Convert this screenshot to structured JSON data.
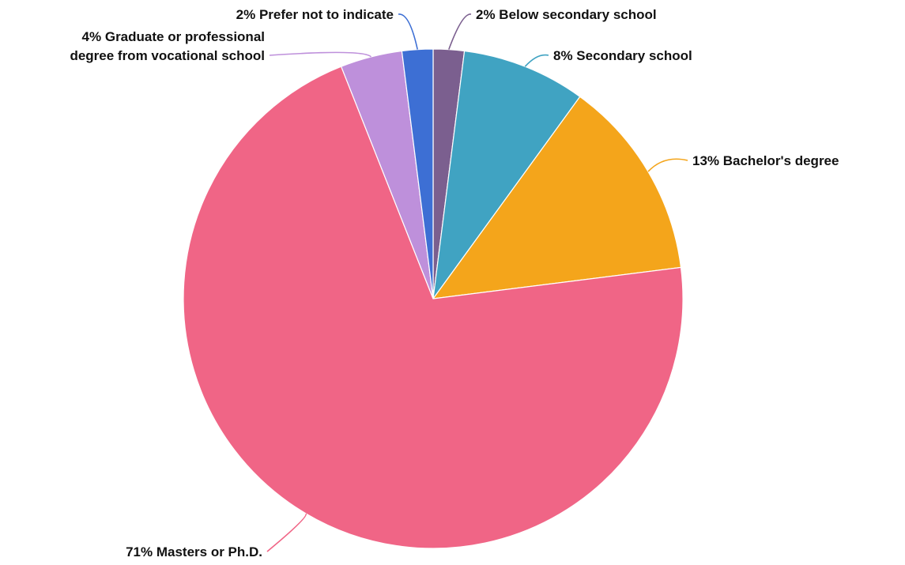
{
  "chart_data": {
    "type": "pie",
    "title": "",
    "legend": "none",
    "slices": [
      {
        "name": "Below secondary school",
        "value": 2,
        "label": [
          "2% Below secondary school"
        ],
        "color": "#7B5F8F"
      },
      {
        "name": "Secondary school",
        "value": 8,
        "label": [
          "8% Secondary school"
        ],
        "color": "#40A3C2"
      },
      {
        "name": "Bachelor's degree",
        "value": 13,
        "label": [
          "13% Bachelor's degree"
        ],
        "color": "#F4A51B"
      },
      {
        "name": "Masters or Ph.D.",
        "value": 71,
        "label": [
          "71% Masters or Ph.D."
        ],
        "color": "#F06586"
      },
      {
        "name": "Graduate or professional degree from vocational school",
        "value": 4,
        "label": [
          "4% Graduate or professional",
          "degree from vocational school"
        ],
        "color": "#BE90DB"
      },
      {
        "name": "Prefer not to indicate",
        "value": 2,
        "label": [
          "2% Prefer not to indicate"
        ],
        "color": "#3D6FD4"
      }
    ]
  }
}
